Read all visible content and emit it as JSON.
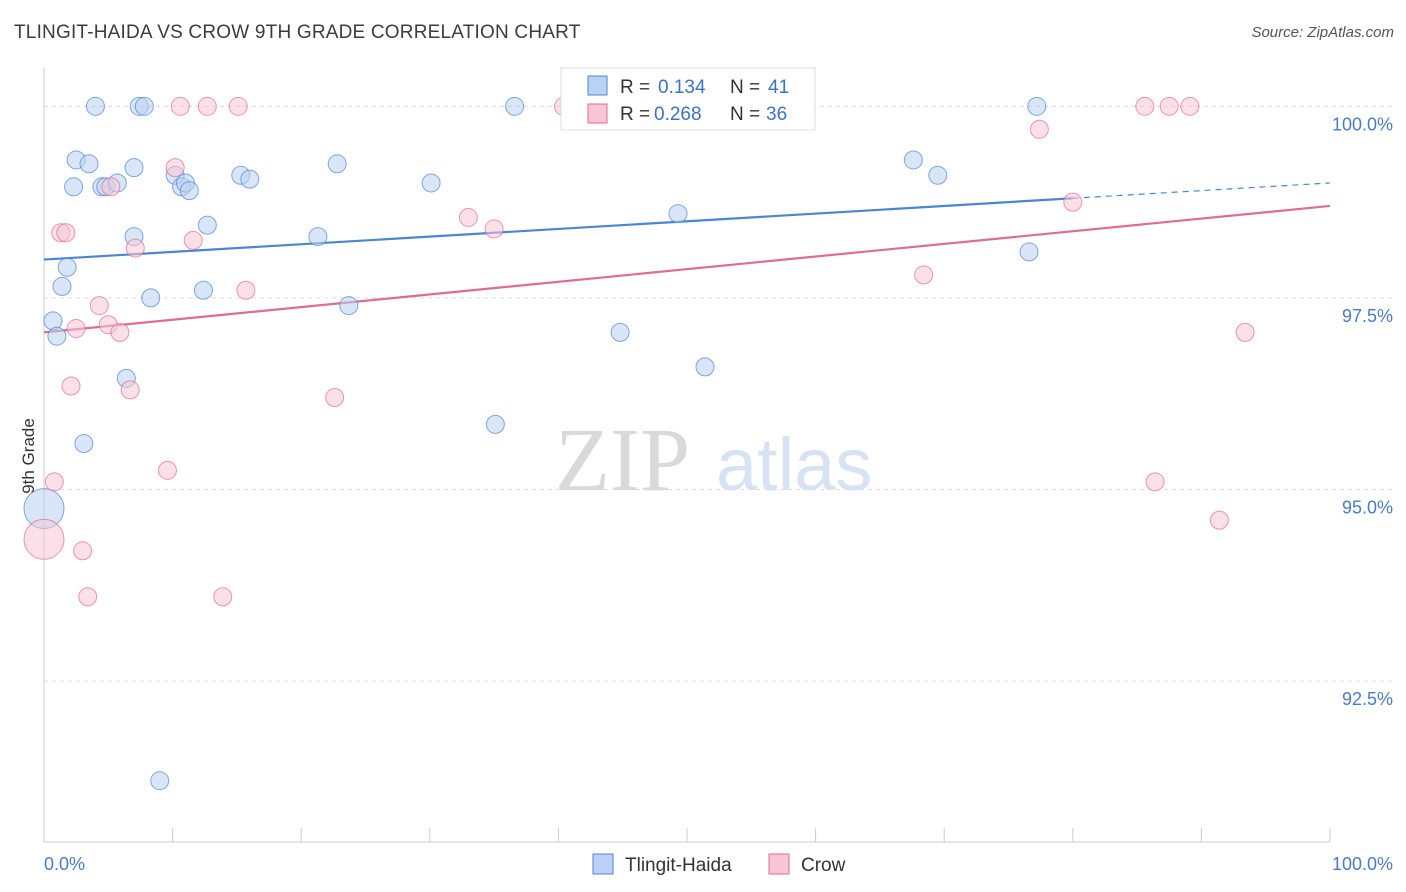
{
  "title": "TLINGIT-HAIDA VS CROW 9TH GRADE CORRELATION CHART",
  "source": "Source: ZipAtlas.com",
  "colors": {
    "blue": "#4a86d4",
    "blue_fill": "#b9d1f2",
    "pink": "#e06b95",
    "pink_fill": "#f7c6d4",
    "axis_label": "#4a7bc8",
    "grid": "#dcdcdc"
  },
  "watermark": {
    "zip": "ZIP",
    "atlas": "atlas"
  },
  "chart_data": {
    "type": "scatter",
    "ylabel": "9th Grade",
    "xlim": [
      0,
      100
    ],
    "ylim": [
      90.4,
      100.5
    ],
    "y_ticks": [
      {
        "value": 100.0,
        "label": "100.0%"
      },
      {
        "value": 97.5,
        "label": "97.5%"
      },
      {
        "value": 95.0,
        "label": "95.0%"
      },
      {
        "value": 92.5,
        "label": "92.5%"
      }
    ],
    "x_tick_labels": {
      "left": "0.0%",
      "right": "100.0%"
    },
    "legend": {
      "r_label": "R =",
      "n_label": "N =",
      "entries": [
        {
          "series": "Tlingit-Haida",
          "r": "0.134",
          "n": "41"
        },
        {
          "series": "Crow",
          "r": "0.268",
          "n": "36"
        }
      ]
    },
    "series": [
      {
        "name": "Tlingit-Haida",
        "color": "#4a86d4",
        "trend": {
          "x0": 0,
          "y0": 98.0,
          "x1": 80,
          "y1": 98.8,
          "dash_to": 100,
          "dash_y": 99.0
        },
        "points": [
          {
            "x": 0.0,
            "y": 94.75,
            "big": true
          },
          {
            "x": 0.7,
            "y": 97.2
          },
          {
            "x": 1.0,
            "y": 97.0
          },
          {
            "x": 1.4,
            "y": 97.65
          },
          {
            "x": 1.8,
            "y": 97.9
          },
          {
            "x": 2.3,
            "y": 98.95
          },
          {
            "x": 2.5,
            "y": 99.3
          },
          {
            "x": 3.1,
            "y": 95.6
          },
          {
            "x": 3.5,
            "y": 99.25
          },
          {
            "x": 4.0,
            "y": 100.0
          },
          {
            "x": 4.5,
            "y": 98.95
          },
          {
            "x": 4.8,
            "y": 98.95
          },
          {
            "x": 5.7,
            "y": 99.0
          },
          {
            "x": 6.4,
            "y": 96.45
          },
          {
            "x": 7.0,
            "y": 99.2
          },
          {
            "x": 7.0,
            "y": 98.3
          },
          {
            "x": 7.4,
            "y": 100.0
          },
          {
            "x": 7.8,
            "y": 100.0
          },
          {
            "x": 8.3,
            "y": 97.5
          },
          {
            "x": 9.0,
            "y": 91.2
          },
          {
            "x": 10.2,
            "y": 99.1
          },
          {
            "x": 10.7,
            "y": 98.95
          },
          {
            "x": 11.0,
            "y": 99.0
          },
          {
            "x": 11.3,
            "y": 98.9
          },
          {
            "x": 12.4,
            "y": 97.6
          },
          {
            "x": 12.7,
            "y": 98.45
          },
          {
            "x": 15.3,
            "y": 99.1
          },
          {
            "x": 16.0,
            "y": 99.05
          },
          {
            "x": 21.3,
            "y": 98.3
          },
          {
            "x": 22.8,
            "y": 99.25
          },
          {
            "x": 23.7,
            "y": 97.4
          },
          {
            "x": 30.1,
            "y": 99.0
          },
          {
            "x": 35.1,
            "y": 95.85
          },
          {
            "x": 36.6,
            "y": 100.0
          },
          {
            "x": 44.8,
            "y": 97.05
          },
          {
            "x": 49.3,
            "y": 98.6
          },
          {
            "x": 51.4,
            "y": 96.6
          },
          {
            "x": 67.6,
            "y": 99.3
          },
          {
            "x": 69.5,
            "y": 99.1
          },
          {
            "x": 76.6,
            "y": 98.1
          },
          {
            "x": 77.2,
            "y": 100.0
          }
        ]
      },
      {
        "name": "Crow",
        "color": "#e06b95",
        "trend": {
          "x0": 0,
          "y0": 97.05,
          "x1": 100,
          "y1": 98.7
        },
        "points": [
          {
            "x": 0.0,
            "y": 94.35,
            "big": true
          },
          {
            "x": 0.8,
            "y": 95.1
          },
          {
            "x": 1.3,
            "y": 98.35
          },
          {
            "x": 1.7,
            "y": 98.35
          },
          {
            "x": 2.1,
            "y": 96.35
          },
          {
            "x": 2.5,
            "y": 97.1
          },
          {
            "x": 3.0,
            "y": 94.2
          },
          {
            "x": 3.4,
            "y": 93.6
          },
          {
            "x": 4.3,
            "y": 97.4
          },
          {
            "x": 5.0,
            "y": 97.15
          },
          {
            "x": 5.2,
            "y": 98.95
          },
          {
            "x": 5.9,
            "y": 97.05
          },
          {
            "x": 6.7,
            "y": 96.3
          },
          {
            "x": 7.1,
            "y": 98.15
          },
          {
            "x": 9.6,
            "y": 95.25
          },
          {
            "x": 10.2,
            "y": 99.2
          },
          {
            "x": 10.6,
            "y": 100.0
          },
          {
            "x": 11.6,
            "y": 98.25
          },
          {
            "x": 12.7,
            "y": 100.0
          },
          {
            "x": 13.9,
            "y": 93.6
          },
          {
            "x": 15.1,
            "y": 100.0
          },
          {
            "x": 15.7,
            "y": 97.6
          },
          {
            "x": 22.6,
            "y": 96.2
          },
          {
            "x": 33.0,
            "y": 98.55
          },
          {
            "x": 35.0,
            "y": 98.4
          },
          {
            "x": 40.4,
            "y": 100.0
          },
          {
            "x": 56.1,
            "y": 100.0
          },
          {
            "x": 68.4,
            "y": 97.8
          },
          {
            "x": 77.4,
            "y": 99.7
          },
          {
            "x": 80.0,
            "y": 98.75
          },
          {
            "x": 85.6,
            "y": 100.0
          },
          {
            "x": 86.4,
            "y": 95.1
          },
          {
            "x": 87.5,
            "y": 100.0
          },
          {
            "x": 89.1,
            "y": 100.0
          },
          {
            "x": 91.4,
            "y": 94.6
          },
          {
            "x": 93.4,
            "y": 97.05
          }
        ]
      }
    ]
  }
}
